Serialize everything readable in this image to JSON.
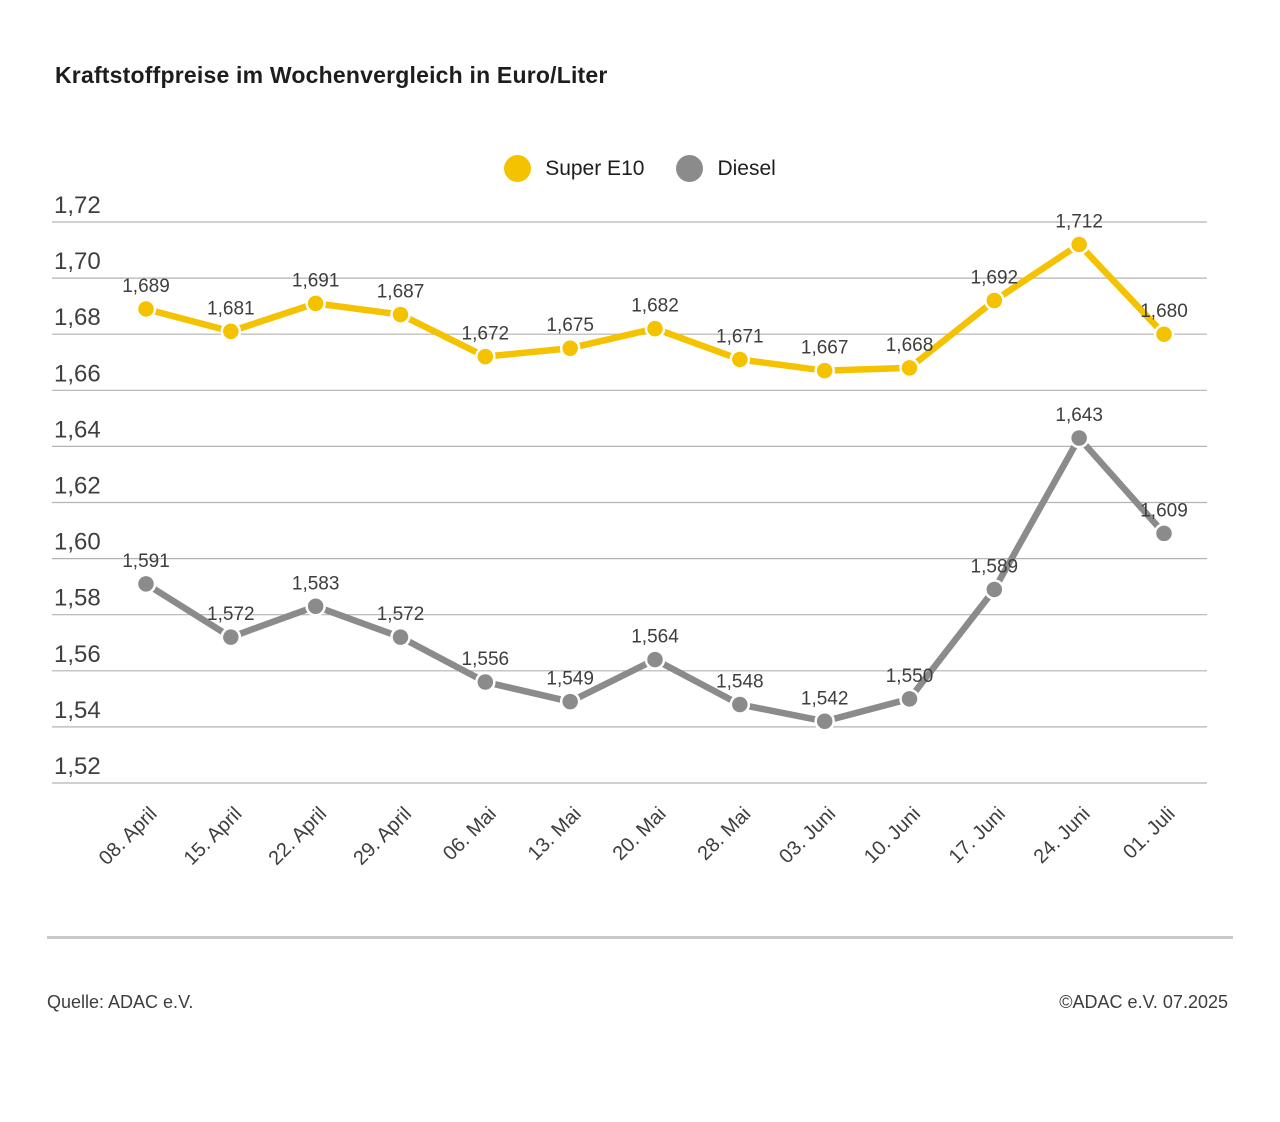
{
  "title": "Kraftstoffpreise im Wochenvergleich in Euro/Liter",
  "legend": {
    "items": [
      {
        "label": "Super E10",
        "color": "#f5c200"
      },
      {
        "label": "Diesel",
        "color": "#8b8b8b"
      }
    ]
  },
  "chart_data": {
    "type": "line",
    "categories": [
      "08. April",
      "15. April",
      "22. April",
      "29. April",
      "06. Mai",
      "13. Mai",
      "20. Mai",
      "28. Mai",
      "03. Juni",
      "10. Juni",
      "17. Juni",
      "24. Juni",
      "01. Juli"
    ],
    "series": [
      {
        "name": "Super E10",
        "color": "#f5c200",
        "values": [
          1.689,
          1.681,
          1.691,
          1.687,
          1.672,
          1.675,
          1.682,
          1.671,
          1.667,
          1.668,
          1.692,
          1.712,
          1.68
        ]
      },
      {
        "name": "Diesel",
        "color": "#8b8b8b",
        "values": [
          1.591,
          1.572,
          1.583,
          1.572,
          1.556,
          1.549,
          1.564,
          1.548,
          1.542,
          1.55,
          1.589,
          1.643,
          1.609
        ]
      }
    ],
    "ylim": [
      1.52,
      1.72
    ],
    "ytick_step": 0.02,
    "decimal_separator": ",",
    "grid": true,
    "data_labels": true,
    "legend_position": "top-center",
    "x_label_rotation": -45,
    "title": "Kraftstoffpreise im Wochenvergleich in Euro/Liter",
    "xlabel": "",
    "ylabel": "Euro/Liter"
  },
  "footer": {
    "source": "Quelle: ADAC e.V.",
    "copyright": "©ADAC e.V. 07.2025"
  }
}
